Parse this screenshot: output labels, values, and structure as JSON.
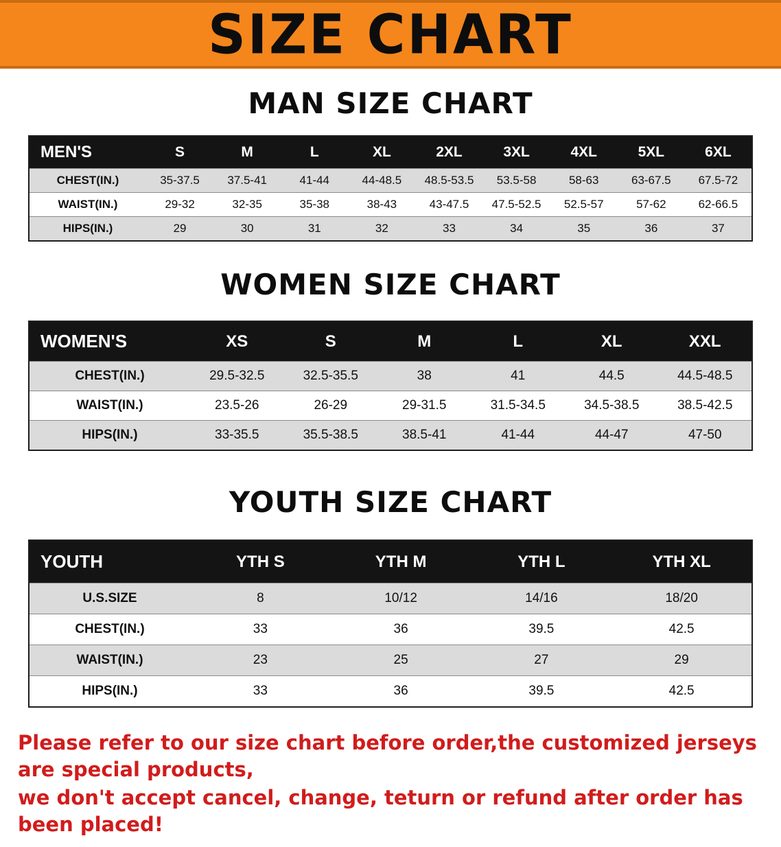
{
  "banner": {
    "title": "SIZE CHART"
  },
  "colors": {
    "banner_bg": "#f4861c",
    "banner_edge": "#c96c10",
    "banner_text": "#0d0d0d",
    "table_header_bg": "#141414",
    "table_header_text": "#ffffff",
    "table_border": "#1e1e1e",
    "row_alt_bg": "#dbdbdb",
    "row_line": "#8a8a8a",
    "notice_red": "#d11c1c"
  },
  "sections": {
    "men": {
      "heading": "MAN SIZE CHART",
      "table": {
        "header": [
          "MEN'S",
          "S",
          "M",
          "L",
          "XL",
          "2XL",
          "3XL",
          "4XL",
          "5XL",
          "6XL"
        ],
        "rows": [
          [
            "CHEST(IN.)",
            "35-37.5",
            "37.5-41",
            "41-44",
            "44-48.5",
            "48.5-53.5",
            "53.5-58",
            "58-63",
            "63-67.5",
            "67.5-72"
          ],
          [
            "WAIST(IN.)",
            "29-32",
            "32-35",
            "35-38",
            "38-43",
            "43-47.5",
            "47.5-52.5",
            "52.5-57",
            "57-62",
            "62-66.5"
          ],
          [
            "HIPS(IN.)",
            "29",
            "30",
            "31",
            "32",
            "33",
            "34",
            "35",
            "36",
            "37"
          ]
        ]
      }
    },
    "women": {
      "heading": "WOMEN SIZE CHART",
      "table": {
        "header": [
          "WOMEN'S",
          "XS",
          "S",
          "M",
          "L",
          "XL",
          "XXL"
        ],
        "rows": [
          [
            "CHEST(IN.)",
            "29.5-32.5",
            "32.5-35.5",
            "38",
            "41",
            "44.5",
            "44.5-48.5"
          ],
          [
            "WAIST(IN.)",
            "23.5-26",
            "26-29",
            "29-31.5",
            "31.5-34.5",
            "34.5-38.5",
            "38.5-42.5"
          ],
          [
            "HIPS(IN.)",
            "33-35.5",
            "35.5-38.5",
            "38.5-41",
            "41-44",
            "44-47",
            "47-50"
          ]
        ]
      }
    },
    "youth": {
      "heading": "YOUTH SIZE CHART",
      "table": {
        "header": [
          "YOUTH",
          "YTH S",
          "YTH M",
          "YTH L",
          "YTH XL"
        ],
        "rows": [
          [
            "U.S.SIZE",
            "8",
            "10/12",
            "14/16",
            "18/20"
          ],
          [
            "CHEST(IN.)",
            "33",
            "36",
            "39.5",
            "42.5"
          ],
          [
            "WAIST(IN.)",
            "23",
            "25",
            "27",
            "29"
          ],
          [
            "HIPS(IN.)",
            "33",
            "36",
            "39.5",
            "42.5"
          ]
        ]
      }
    }
  },
  "footer": {
    "line1": "Please refer to our size chart before order,the customized jerseys are special products,",
    "line2": "we don't accept cancel, change, teturn or refund after order has been placed!"
  }
}
